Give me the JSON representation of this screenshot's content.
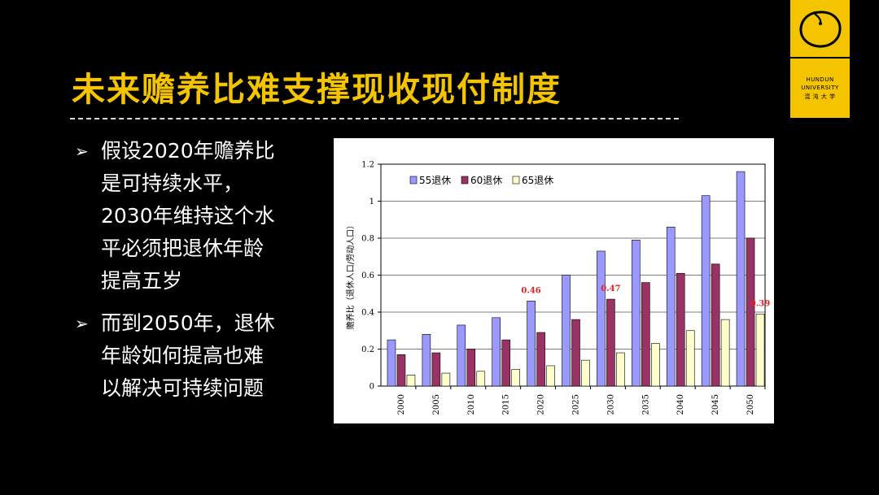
{
  "slide": {
    "title": "未来赡养比难支撑现收现付制度",
    "bullets": [
      {
        "marker": "➢",
        "lines": [
          "假设2020年赡养比",
          "是可持续水平，",
          "2030年维持这个水",
          "平必须把退休年龄",
          "提高五岁"
        ]
      },
      {
        "marker": "➢",
        "lines": [
          "而到2050年，退休",
          "年龄如何提高也难",
          "以解决可持续问题"
        ]
      }
    ]
  },
  "logo": {
    "name": "HUNDUN",
    "name2": "UNIVERSITY",
    "cn": "混 沌 大 学",
    "icon": "ring-logo-icon",
    "colors": {
      "background": "#f5c400",
      "ink": "#000000"
    }
  },
  "chart_data": {
    "type": "bar",
    "title": "",
    "xlabel": "",
    "ylabel": "赡养比（退休人口/劳动人口）",
    "categories": [
      "2000",
      "2005",
      "2010",
      "2015",
      "2020",
      "2025",
      "2030",
      "2035",
      "2040",
      "2045",
      "2050"
    ],
    "series": [
      {
        "name": "55退休",
        "color": "#9999ff",
        "values": [
          0.25,
          0.28,
          0.33,
          0.37,
          0.46,
          0.6,
          0.73,
          0.79,
          0.86,
          1.03,
          1.16
        ]
      },
      {
        "name": "60退休",
        "color": "#993366",
        "values": [
          0.17,
          0.18,
          0.2,
          0.25,
          0.29,
          0.36,
          0.47,
          0.56,
          0.61,
          0.66,
          0.8
        ]
      },
      {
        "name": "65退休",
        "color": "#ffffcc",
        "values": [
          0.06,
          0.07,
          0.08,
          0.09,
          0.11,
          0.14,
          0.18,
          0.23,
          0.3,
          0.36,
          0.39
        ]
      }
    ],
    "ylim": [
      0,
      1.2
    ],
    "yticks": [
      {
        "v": 0,
        "label": "0"
      },
      {
        "v": 0.2,
        "label": "0.2"
      },
      {
        "v": 0.4,
        "label": "0.4"
      },
      {
        "v": 0.6,
        "label": "0.6"
      },
      {
        "v": 0.8,
        "label": "0.8"
      },
      {
        "v": 1.0,
        "label": "1"
      },
      {
        "v": 1.2,
        "label": "1.2"
      }
    ],
    "grid": true,
    "legend_position": "top-left",
    "annotations": [
      {
        "category": "2020",
        "series": 0,
        "label": "0.46"
      },
      {
        "category": "2030",
        "series": 1,
        "label": "0.47"
      },
      {
        "category": "2050",
        "series": 2,
        "label": "0.39"
      }
    ]
  }
}
